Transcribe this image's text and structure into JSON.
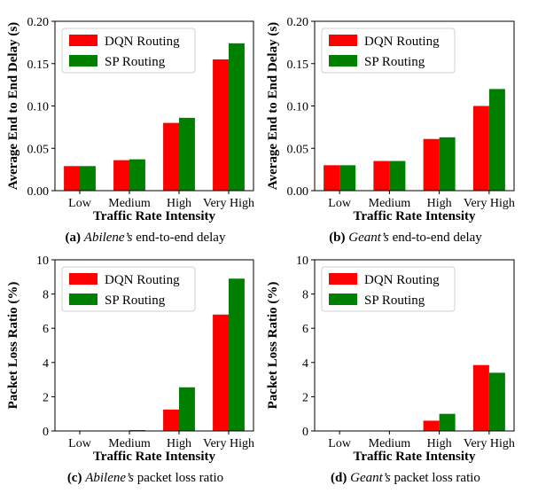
{
  "colors": {
    "dqn": "#ff0000",
    "sp": "#008000",
    "axis": "#000000"
  },
  "chart_data": [
    {
      "type": "bar",
      "categories": [
        "Low",
        "Medium",
        "High",
        "Very High"
      ],
      "series": [
        {
          "name": "DQN Routing",
          "values": [
            0.029,
            0.036,
            0.08,
            0.155
          ]
        },
        {
          "name": "SP Routing",
          "values": [
            0.029,
            0.037,
            0.086,
            0.174
          ]
        }
      ],
      "xlabel": "Traffic Rate Intensity",
      "ylabel": "Average End to End Delay (s)",
      "ylim": [
        0,
        0.2
      ],
      "yticks": [
        "0.00",
        "0.05",
        "0.10",
        "0.15",
        "0.20"
      ],
      "legend": "top-left",
      "caption": {
        "tag": "(a)",
        "italic": "Abilene’s",
        "rest": "end-to-end delay"
      }
    },
    {
      "type": "bar",
      "categories": [
        "Low",
        "Medium",
        "High",
        "Very High"
      ],
      "series": [
        {
          "name": "DQN Routing",
          "values": [
            0.03,
            0.035,
            0.061,
            0.1
          ]
        },
        {
          "name": "SP Routing",
          "values": [
            0.03,
            0.035,
            0.063,
            0.12
          ]
        }
      ],
      "xlabel": "Traffic Rate Intensity",
      "ylabel": "Average End to End Delay (s)",
      "ylim": [
        0,
        0.2
      ],
      "yticks": [
        "0.00",
        "0.05",
        "0.10",
        "0.15",
        "0.20"
      ],
      "legend": "top-left",
      "caption": {
        "tag": "(b)",
        "italic": "Geant’s",
        "rest": "end-to-end delay"
      }
    },
    {
      "type": "bar",
      "categories": [
        "Low",
        "Medium",
        "High",
        "Very High"
      ],
      "series": [
        {
          "name": "DQN Routing",
          "values": [
            0.0,
            0.0,
            1.25,
            6.8
          ]
        },
        {
          "name": "SP Routing",
          "values": [
            0.0,
            0.05,
            2.55,
            8.9
          ]
        }
      ],
      "xlabel": "Traffic Rate Intensity",
      "ylabel": "Packet Loss Ratio (%)",
      "ylim": [
        0,
        10
      ],
      "yticks": [
        "0",
        "2",
        "4",
        "6",
        "8",
        "10"
      ],
      "legend": "top-left",
      "caption": {
        "tag": "(c)",
        "italic": "Abilene’s",
        "rest": "packet loss ratio"
      }
    },
    {
      "type": "bar",
      "categories": [
        "Low",
        "Medium",
        "High",
        "Very High"
      ],
      "series": [
        {
          "name": "DQN Routing",
          "values": [
            0.0,
            0.0,
            0.6,
            3.85
          ]
        },
        {
          "name": "SP Routing",
          "values": [
            0.0,
            0.0,
            1.0,
            3.4
          ]
        }
      ],
      "xlabel": "Traffic Rate Intensity",
      "ylabel": "Packet Loss Ratio (%)",
      "ylim": [
        0,
        10
      ],
      "yticks": [
        "0",
        "2",
        "4",
        "6",
        "8",
        "10"
      ],
      "legend": "top-left",
      "caption": {
        "tag": "(d)",
        "italic": "Geant’s",
        "rest": "packet loss ratio"
      }
    }
  ]
}
